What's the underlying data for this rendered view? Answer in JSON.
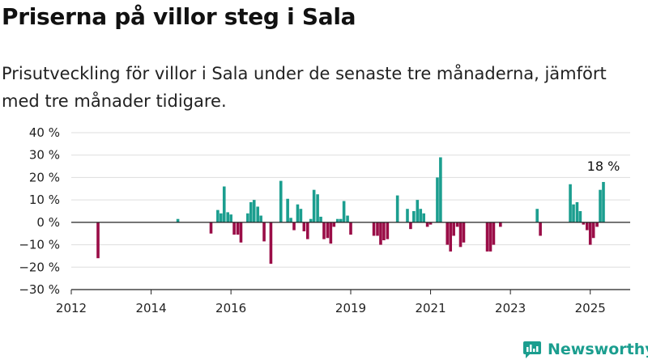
{
  "header": {
    "title": "Priserna på villor steg i Sala",
    "subtitle": "Prisutveckling för villor i Sala under de senaste tre månaderna, jämfört med tre månader tidigare."
  },
  "brand": {
    "name": "Newsworthy"
  },
  "colors": {
    "positive": "#1b9e8f",
    "negative": "#9a0d47",
    "grid": "#dddddd",
    "axis": "#222222"
  },
  "chart_data": {
    "type": "bar",
    "ylim": [
      -30,
      40
    ],
    "yticks": [
      -30,
      -20,
      -10,
      0,
      10,
      20,
      30,
      40
    ],
    "ytick_labels": [
      "−30 %",
      "−20 %",
      "−10 %",
      "0 %",
      "10 %",
      "20 %",
      "30 %",
      "40 %"
    ],
    "xlim": [
      2012,
      2026
    ],
    "xticks": [
      2012,
      2014,
      2016,
      2019,
      2021,
      2023,
      2025
    ],
    "xtick_labels": [
      "2012",
      "2014",
      "2016",
      "2019",
      "2021",
      "2023",
      "2025"
    ],
    "grid": true,
    "series": [
      {
        "values": [
          [
            2012.67,
            -16
          ],
          [
            2014.67,
            1.5
          ],
          [
            2015.5,
            -5
          ],
          [
            2015.67,
            5.5
          ],
          [
            2015.75,
            4
          ],
          [
            2015.83,
            16
          ],
          [
            2015.92,
            4.5
          ],
          [
            2016.0,
            3.5
          ],
          [
            2016.08,
            -5.5
          ],
          [
            2016.17,
            -5.5
          ],
          [
            2016.25,
            -9
          ],
          [
            2016.42,
            4
          ],
          [
            2016.5,
            9
          ],
          [
            2016.58,
            10
          ],
          [
            2016.67,
            7
          ],
          [
            2016.75,
            3
          ],
          [
            2016.83,
            -8.5
          ],
          [
            2017.0,
            -18.5
          ],
          [
            2017.25,
            18.5
          ],
          [
            2017.42,
            10.5
          ],
          [
            2017.5,
            2
          ],
          [
            2017.58,
            -3.5
          ],
          [
            2017.67,
            8
          ],
          [
            2017.75,
            6
          ],
          [
            2017.83,
            -4
          ],
          [
            2017.92,
            -7.5
          ],
          [
            2018.0,
            1.5
          ],
          [
            2018.08,
            14.5
          ],
          [
            2018.17,
            12.5
          ],
          [
            2018.25,
            2.5
          ],
          [
            2018.33,
            -7.5
          ],
          [
            2018.42,
            -7
          ],
          [
            2018.5,
            -9.5
          ],
          [
            2018.58,
            -2
          ],
          [
            2018.67,
            1.5
          ],
          [
            2018.75,
            1.5
          ],
          [
            2018.83,
            9.5
          ],
          [
            2018.92,
            3
          ],
          [
            2019.0,
            -5.5
          ],
          [
            2019.58,
            -6
          ],
          [
            2019.67,
            -6
          ],
          [
            2019.75,
            -10
          ],
          [
            2019.83,
            -8
          ],
          [
            2019.92,
            -7.5
          ],
          [
            2020.17,
            12
          ],
          [
            2020.42,
            6
          ],
          [
            2020.5,
            -3
          ],
          [
            2020.58,
            5
          ],
          [
            2020.67,
            10
          ],
          [
            2020.75,
            6
          ],
          [
            2020.83,
            4
          ],
          [
            2020.92,
            -2
          ],
          [
            2021.0,
            -1
          ],
          [
            2021.17,
            20
          ],
          [
            2021.25,
            29
          ],
          [
            2021.42,
            -10
          ],
          [
            2021.5,
            -13
          ],
          [
            2021.58,
            -6
          ],
          [
            2021.67,
            -2
          ],
          [
            2021.75,
            -11
          ],
          [
            2021.83,
            -9
          ],
          [
            2022.42,
            -13
          ],
          [
            2022.5,
            -13
          ],
          [
            2022.58,
            -10
          ],
          [
            2022.75,
            -2
          ],
          [
            2023.67,
            6
          ],
          [
            2023.75,
            -6
          ],
          [
            2024.5,
            17
          ],
          [
            2024.58,
            8
          ],
          [
            2024.67,
            9
          ],
          [
            2024.75,
            5
          ],
          [
            2024.83,
            -1
          ],
          [
            2024.92,
            -3.5
          ],
          [
            2025.0,
            -10
          ],
          [
            2025.08,
            -7
          ],
          [
            2025.17,
            -2
          ],
          [
            2025.25,
            14.5
          ],
          [
            2025.33,
            18
          ]
        ]
      }
    ],
    "annotations": [
      {
        "x": 2025.33,
        "y": 18,
        "text": "18 %"
      }
    ]
  }
}
